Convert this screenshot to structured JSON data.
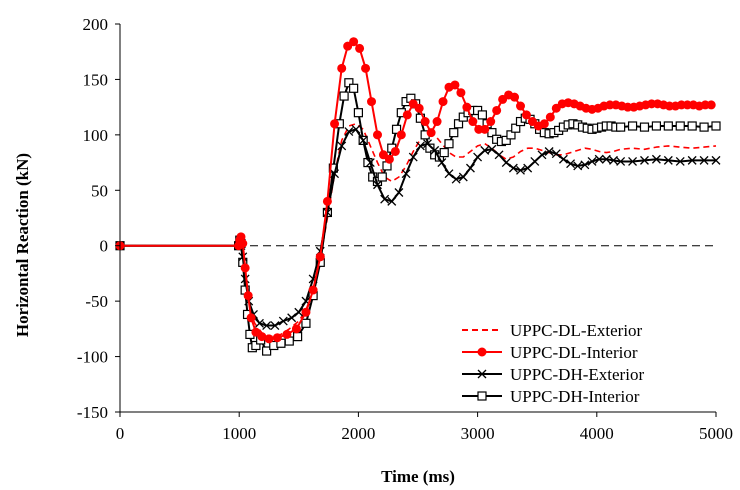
{
  "chart_data": {
    "type": "line",
    "title": "",
    "xlabel": "Time (ms)",
    "ylabel": "Horizontal Reaction (kN)",
    "xlim": [
      0,
      5000
    ],
    "ylim": [
      -150,
      200
    ],
    "xticks": [
      0,
      1000,
      2000,
      3000,
      4000,
      5000
    ],
    "yticks": [
      -150,
      -100,
      -50,
      0,
      50,
      100,
      150,
      200
    ],
    "grid": false,
    "reference_line": {
      "y": 0,
      "style": "dashed"
    },
    "legend_position": "bottom-right",
    "series": [
      {
        "name": "UPPC-DL-Exterior",
        "color": "#ff0000",
        "line_style": "dashed",
        "marker": "none",
        "x": [
          0,
          990,
          1005,
          1020,
          1040,
          1060,
          1090,
          1130,
          1200,
          1270,
          1350,
          1420,
          1500,
          1560,
          1620,
          1680,
          1740,
          1800,
          1860,
          1920,
          1980,
          2040,
          2100,
          2160,
          2220,
          2280,
          2340,
          2400,
          2460,
          2520,
          2580,
          2640,
          2700,
          2760,
          2820,
          2880,
          2940,
          3000,
          3060,
          3120,
          3180,
          3240,
          3300,
          3360,
          3420,
          3480,
          3540,
          3600,
          3660,
          3720,
          3780,
          3840,
          3900,
          3960,
          4020,
          4080,
          4140,
          4200,
          4300,
          4400,
          4500,
          4600,
          4700,
          4800,
          4900,
          5000
        ],
        "y": [
          0,
          0,
          2,
          -5,
          -18,
          -35,
          -55,
          -70,
          -80,
          -82,
          -80,
          -75,
          -68,
          -58,
          -40,
          -12,
          25,
          65,
          95,
          108,
          110,
          105,
          90,
          75,
          62,
          58,
          62,
          72,
          85,
          96,
          102,
          100,
          92,
          84,
          80,
          80,
          85,
          90,
          92,
          88,
          82,
          78,
          80,
          85,
          88,
          88,
          86,
          84,
          82,
          82,
          84,
          86,
          88,
          87,
          85,
          84,
          85,
          87,
          88,
          87,
          89,
          90,
          89,
          88,
          89,
          90
        ]
      },
      {
        "name": "UPPC-DL-Interior",
        "color": "#ff0000",
        "line_style": "solid",
        "marker": "circle",
        "x": [
          0,
          995,
          1005,
          1015,
          1030,
          1050,
          1075,
          1100,
          1140,
          1190,
          1250,
          1320,
          1400,
          1480,
          1560,
          1620,
          1680,
          1740,
          1800,
          1860,
          1910,
          1960,
          2010,
          2060,
          2110,
          2160,
          2210,
          2260,
          2310,
          2360,
          2410,
          2460,
          2510,
          2560,
          2610,
          2660,
          2710,
          2760,
          2810,
          2860,
          2910,
          2960,
          3010,
          3060,
          3110,
          3160,
          3210,
          3260,
          3310,
          3360,
          3410,
          3460,
          3510,
          3560,
          3610,
          3660,
          3710,
          3760,
          3810,
          3860,
          3910,
          3960,
          4010,
          4060,
          4110,
          4160,
          4210,
          4260,
          4310,
          4360,
          4410,
          4460,
          4510,
          4560,
          4610,
          4660,
          4710,
          4760,
          4810,
          4860,
          4910,
          4960
        ],
        "y": [
          0,
          0,
          5,
          8,
          2,
          -20,
          -45,
          -65,
          -78,
          -82,
          -84,
          -83,
          -80,
          -75,
          -60,
          -40,
          -10,
          40,
          110,
          160,
          180,
          184,
          178,
          160,
          130,
          100,
          82,
          78,
          85,
          100,
          118,
          128,
          124,
          112,
          102,
          112,
          130,
          143,
          145,
          138,
          125,
          112,
          105,
          105,
          112,
          122,
          132,
          136,
          134,
          126,
          118,
          112,
          108,
          110,
          116,
          124,
          128,
          129,
          128,
          126,
          124,
          123,
          124,
          126,
          127,
          127,
          126,
          125,
          125,
          126,
          127,
          128,
          128,
          127,
          126,
          126,
          127,
          127,
          127,
          126,
          127,
          127
        ]
      },
      {
        "name": "UPPC-DH-Exterior",
        "color": "#000000",
        "line_style": "solid",
        "marker": "x",
        "x": [
          0,
          995,
          1005,
          1015,
          1030,
          1050,
          1080,
          1120,
          1170,
          1230,
          1300,
          1370,
          1440,
          1500,
          1560,
          1620,
          1680,
          1740,
          1800,
          1860,
          1920,
          1980,
          2040,
          2100,
          2160,
          2220,
          2280,
          2340,
          2400,
          2460,
          2520,
          2580,
          2640,
          2700,
          2760,
          2820,
          2880,
          2940,
          3000,
          3060,
          3120,
          3180,
          3240,
          3300,
          3360,
          3420,
          3480,
          3540,
          3600,
          3660,
          3720,
          3780,
          3840,
          3900,
          3960,
          4020,
          4080,
          4140,
          4200,
          4300,
          4400,
          4500,
          4600,
          4700,
          4800,
          4900,
          5000
        ],
        "y": [
          0,
          0,
          3,
          0,
          -10,
          -30,
          -50,
          -62,
          -70,
          -72,
          -72,
          -68,
          -65,
          -60,
          -50,
          -30,
          -5,
          30,
          65,
          90,
          103,
          105,
          95,
          75,
          55,
          42,
          40,
          48,
          65,
          80,
          90,
          92,
          86,
          75,
          65,
          60,
          62,
          70,
          80,
          86,
          87,
          82,
          75,
          70,
          68,
          70,
          76,
          82,
          85,
          83,
          78,
          74,
          72,
          73,
          76,
          78,
          78,
          77,
          76,
          76,
          77,
          78,
          77,
          76,
          77,
          77,
          77
        ]
      },
      {
        "name": "UPPC-DH-Interior",
        "color": "#000000",
        "line_style": "solid",
        "marker": "square",
        "x": [
          0,
          995,
          1005,
          1015,
          1030,
          1050,
          1070,
          1090,
          1110,
          1140,
          1180,
          1230,
          1290,
          1350,
          1420,
          1490,
          1560,
          1620,
          1680,
          1740,
          1790,
          1840,
          1880,
          1920,
          1960,
          2000,
          2040,
          2080,
          2120,
          2160,
          2200,
          2240,
          2280,
          2320,
          2360,
          2400,
          2440,
          2480,
          2520,
          2560,
          2600,
          2640,
          2680,
          2720,
          2760,
          2800,
          2840,
          2880,
          2920,
          2960,
          3000,
          3040,
          3080,
          3120,
          3160,
          3200,
          3240,
          3280,
          3320,
          3360,
          3400,
          3440,
          3480,
          3520,
          3560,
          3600,
          3640,
          3680,
          3720,
          3760,
          3800,
          3840,
          3880,
          3920,
          3960,
          4000,
          4040,
          4080,
          4120,
          4160,
          4200,
          4300,
          4400,
          4500,
          4600,
          4700,
          4800,
          4900,
          5000
        ],
        "y": [
          0,
          0,
          5,
          2,
          -15,
          -40,
          -62,
          -80,
          -92,
          -90,
          -85,
          -95,
          -90,
          -88,
          -86,
          -82,
          -70,
          -45,
          -15,
          30,
          70,
          110,
          135,
          147,
          142,
          120,
          95,
          75,
          62,
          58,
          62,
          72,
          88,
          105,
          120,
          130,
          133,
          128,
          115,
          100,
          88,
          82,
          80,
          84,
          92,
          102,
          110,
          116,
          120,
          122,
          122,
          118,
          110,
          102,
          96,
          94,
          95,
          100,
          106,
          112,
          115,
          114,
          110,
          105,
          102,
          101,
          102,
          104,
          107,
          109,
          110,
          109,
          107,
          106,
          105,
          106,
          107,
          108,
          108,
          107,
          107,
          108,
          107,
          108,
          108,
          108,
          108,
          107,
          108
        ]
      }
    ]
  }
}
